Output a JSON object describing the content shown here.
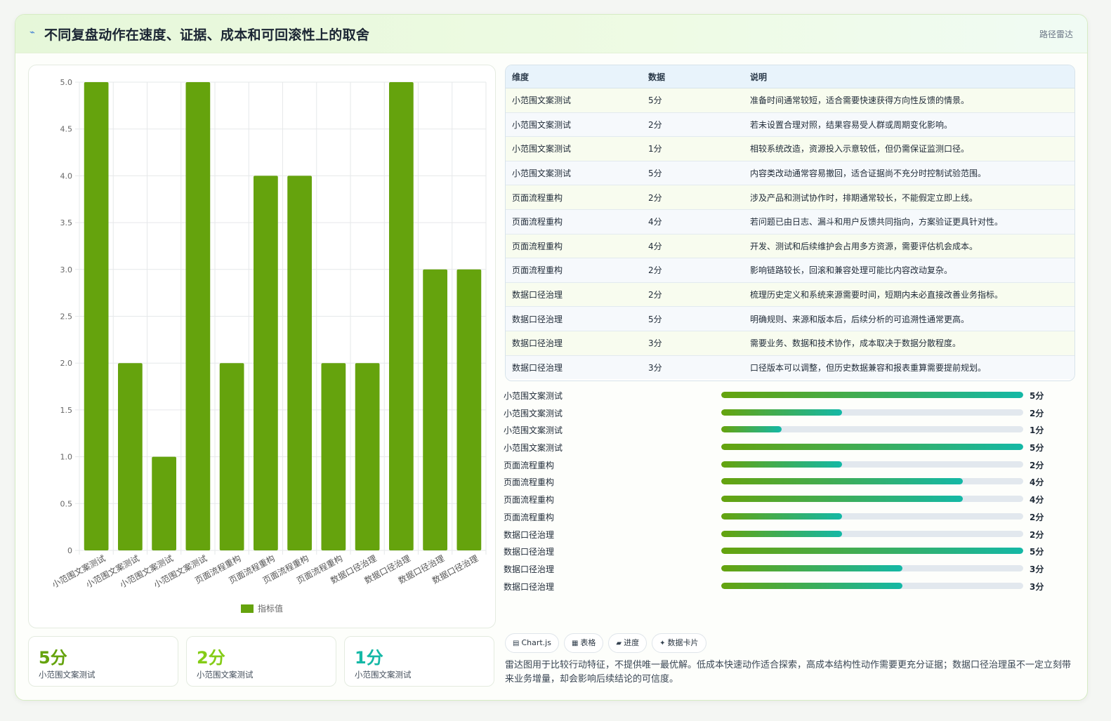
{
  "header": {
    "icon": "signal-icon",
    "title": "不同复盘动作在速度、证据、成本和可回滚性上的取舍",
    "tag": "路径雷达"
  },
  "chart_data": {
    "type": "bar",
    "categories": [
      "小范围文案测试",
      "小范围文案测试",
      "小范围文案测试",
      "小范围文案测试",
      "页面流程重构",
      "页面流程重构",
      "页面流程重构",
      "页面流程重构",
      "数据口径治理",
      "数据口径治理",
      "数据口径治理",
      "数据口径治理"
    ],
    "series": [
      {
        "name": "指标值",
        "values": [
          5,
          2,
          1,
          5,
          2,
          4,
          4,
          2,
          2,
          5,
          3,
          3
        ],
        "color": "#65a30d"
      }
    ],
    "yticks": [
      "0",
      "0.5",
      "1.0",
      "1.5",
      "2.0",
      "2.5",
      "3.0",
      "3.5",
      "4.0",
      "4.5",
      "5.0"
    ],
    "ylim": [
      0,
      5
    ],
    "grid": true,
    "legend": "bottom"
  },
  "stats": [
    {
      "value": "5分",
      "label": "小范围文案测试",
      "color": "#65a30d"
    },
    {
      "value": "2分",
      "label": "小范围文案测试",
      "color": "#84cc16"
    },
    {
      "value": "1分",
      "label": "小范围文案测试",
      "color": "#14b8a6"
    }
  ],
  "table": {
    "headers": [
      "维度",
      "数据",
      "说明"
    ],
    "rows": [
      [
        "小范围文案测试",
        "5分",
        "准备时间通常较短，适合需要快速获得方向性反馈的情景。"
      ],
      [
        "小范围文案测试",
        "2分",
        "若未设置合理对照，结果容易受人群或周期变化影响。"
      ],
      [
        "小范围文案测试",
        "1分",
        "相较系统改造，资源投入示意较低，但仍需保证监测口径。"
      ],
      [
        "小范围文案测试",
        "5分",
        "内容类改动通常容易撤回，适合证据尚不充分时控制试验范围。"
      ],
      [
        "页面流程重构",
        "2分",
        "涉及产品和测试协作时，排期通常较长，不能假定立即上线。"
      ],
      [
        "页面流程重构",
        "4分",
        "若问题已由日志、漏斗和用户反馈共同指向，方案验证更具针对性。"
      ],
      [
        "页面流程重构",
        "4分",
        "开发、测试和后续维护会占用多方资源，需要评估机会成本。"
      ],
      [
        "页面流程重构",
        "2分",
        "影响链路较长，回滚和兼容处理可能比内容改动复杂。"
      ],
      [
        "数据口径治理",
        "2分",
        "梳理历史定义和系统来源需要时间，短期内未必直接改善业务指标。"
      ],
      [
        "数据口径治理",
        "5分",
        "明确规则、来源和版本后，后续分析的可追溯性通常更高。"
      ],
      [
        "数据口径治理",
        "3分",
        "需要业务、数据和技术协作，成本取决于数据分散程度。"
      ],
      [
        "数据口径治理",
        "3分",
        "口径版本可以调整，但历史数据兼容和报表重算需要提前规划。"
      ]
    ]
  },
  "progress": {
    "max": 5,
    "items": [
      {
        "label": "小范围文案测试",
        "value": 5,
        "text": "5分"
      },
      {
        "label": "小范围文案测试",
        "value": 2,
        "text": "2分"
      },
      {
        "label": "小范围文案测试",
        "value": 1,
        "text": "1分"
      },
      {
        "label": "小范围文案测试",
        "value": 5,
        "text": "5分"
      },
      {
        "label": "页面流程重构",
        "value": 2,
        "text": "2分"
      },
      {
        "label": "页面流程重构",
        "value": 4,
        "text": "4分"
      },
      {
        "label": "页面流程重构",
        "value": 4,
        "text": "4分"
      },
      {
        "label": "页面流程重构",
        "value": 2,
        "text": "2分"
      },
      {
        "label": "数据口径治理",
        "value": 2,
        "text": "2分"
      },
      {
        "label": "数据口径治理",
        "value": 5,
        "text": "5分"
      },
      {
        "label": "数据口径治理",
        "value": 3,
        "text": "3分"
      },
      {
        "label": "数据口径治理",
        "value": 3,
        "text": "3分"
      }
    ]
  },
  "pills": [
    {
      "icon": "chart-icon",
      "glyph": "▤",
      "label": "Chart.js"
    },
    {
      "icon": "table-icon",
      "glyph": "▦",
      "label": "表格"
    },
    {
      "icon": "progress-icon",
      "glyph": "▰",
      "label": "进度"
    },
    {
      "icon": "card-icon",
      "glyph": "✦",
      "label": "数据卡片"
    }
  ],
  "note": "雷达图用于比较行动特征，不提供唯一最优解。低成本快速动作适合探索，高成本结构性动作需要更充分证据；数据口径治理虽不一定立刻带来业务增量，却会影响后续结论的可信度。"
}
